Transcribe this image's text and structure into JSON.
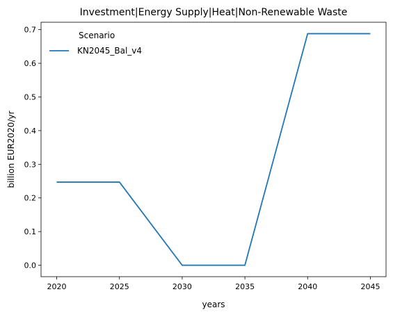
{
  "chart_data": {
    "type": "line",
    "title": "Investment|Energy Supply|Heat|Non-Renewable Waste",
    "xlabel": "years",
    "ylabel": "billion EUR2020/yr",
    "x": [
      2020,
      2025,
      2030,
      2035,
      2040,
      2045
    ],
    "series": [
      {
        "name": "KN2045_Bal_v4",
        "values": [
          0.247,
          0.247,
          0.0,
          0.0,
          0.688,
          0.688
        ],
        "color": "#1f77b4"
      }
    ],
    "xlim": [
      2018.75,
      2046.25
    ],
    "ylim": [
      -0.034,
      0.722
    ],
    "xticks": [
      2020,
      2025,
      2030,
      2035,
      2040,
      2045
    ],
    "yticks": [
      0.0,
      0.1,
      0.2,
      0.3,
      0.4,
      0.5,
      0.6,
      0.7
    ],
    "ytick_labels": [
      "0.0",
      "0.1",
      "0.2",
      "0.3",
      "0.4",
      "0.5",
      "0.6",
      "0.7"
    ],
    "legend_title": "Scenario",
    "legend_position": "top-left",
    "grid": false
  }
}
